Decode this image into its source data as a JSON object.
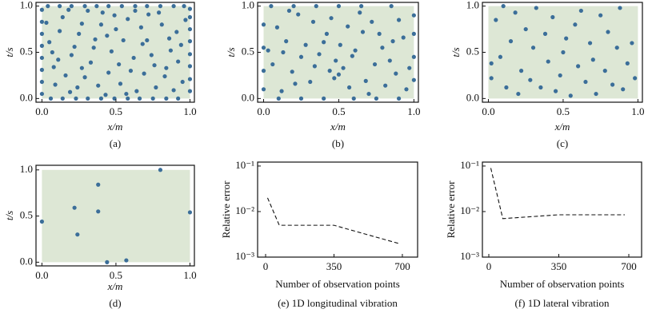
{
  "chart_data": [
    {
      "type": "scatter",
      "caption": "(a)",
      "xlabel": "x/m",
      "ylabel": "t/s",
      "color": "#3b6e99",
      "region": {
        "x": [
          0,
          1
        ],
        "y": [
          0,
          1
        ],
        "color": "#dde7d5"
      },
      "xlim": [
        -0.04,
        1.03
      ],
      "ylim": [
        -0.04,
        1.04
      ],
      "xticks": [
        {
          "value": 0,
          "label": "0.0"
        },
        0.5,
        {
          "value": 1,
          "label": "1.0"
        }
      ],
      "yticks": [
        {
          "value": 0,
          "label": "0.0"
        },
        0.5,
        {
          "value": 1,
          "label": "1.0"
        }
      ],
      "x": [
        0,
        0,
        0,
        0,
        0,
        0,
        0,
        0,
        1,
        1,
        1,
        1,
        1,
        1,
        1,
        1,
        0.06,
        0.14,
        0.23,
        0.31,
        0.4,
        0.49,
        0.58,
        0.66,
        0.75,
        0.84,
        0.92,
        0.04,
        0.12,
        0.2,
        0.29,
        0.37,
        0.45,
        0.54,
        0.63,
        0.71,
        0.8,
        0.89,
        0.96,
        0.11,
        0.27,
        0.53,
        0.68,
        0.84,
        0.19,
        0.36,
        0.72,
        0.45,
        0.91,
        0.05,
        0.62,
        0.29,
        0.77,
        0.14,
        0.5,
        0.87,
        0.33,
        0.58,
        0.95,
        0.22,
        0.41,
        0.69,
        0.08,
        0.81,
        0.47,
        0.25,
        0.64,
        0.38,
        0.92,
        0.16,
        0.55,
        0.74,
        0.03,
        0.31,
        0.86,
        0.43,
        0.6,
        0.12,
        0.79,
        0.35,
        0.97,
        0.2,
        0.52,
        0.67,
        0.09,
        0.44,
        0.89,
        0.27,
        0.71,
        0.57,
        0.18,
        0.83,
        0.4,
        0.63,
        0.07,
        0.49,
        0.94,
        0.24,
        0.76
      ],
      "y": [
        0.05,
        0.18,
        0.31,
        0.44,
        0.57,
        0.7,
        0.83,
        0.96,
        0.08,
        0.21,
        0.35,
        0.48,
        0.62,
        0.75,
        0.88,
        0.97,
        0,
        0,
        0,
        0,
        0,
        0,
        0,
        0,
        0,
        0,
        0,
        1,
        1,
        1,
        1,
        1,
        1,
        1,
        1,
        1,
        1,
        1,
        1,
        0.42,
        0.81,
        0.16,
        0.59,
        0.33,
        0.07,
        0.64,
        0.91,
        0.28,
        0.72,
        0.61,
        0.44,
        0.23,
        0.12,
        0.88,
        0.75,
        0.52,
        0.39,
        0.86,
        0.18,
        0.56,
        0.93,
        0.27,
        0.34,
        0.8,
        0.51,
        0.7,
        0.08,
        0.14,
        0.4,
        0.25,
        0.63,
        0.47,
        0.82,
        0.95,
        0.65,
        0.04,
        0.3,
        0.73,
        0.93,
        0.55,
        0.85,
        0.47,
        0.37,
        0.77,
        0.15,
        0.68,
        0.09,
        0.33,
        0.63,
        0.05,
        0.96,
        0.24,
        0.8,
        0.95,
        0.5,
        0.9,
        0.58,
        0.12,
        0.36
      ]
    },
    {
      "type": "scatter",
      "caption": "(b)",
      "xlabel": "x/m",
      "ylabel": "t/s",
      "color": "#3b6e99",
      "region": {
        "x": [
          0,
          1
        ],
        "y": [
          0,
          1
        ],
        "color": "#dde7d5"
      },
      "xlim": [
        -0.04,
        1.03
      ],
      "ylim": [
        -0.04,
        1.04
      ],
      "xticks": [
        {
          "value": 0,
          "label": "0.0"
        },
        0.5,
        {
          "value": 1,
          "label": "1.0"
        }
      ],
      "yticks": [
        {
          "value": 0,
          "label": "0.0"
        },
        0.5,
        {
          "value": 1,
          "label": "1.0"
        }
      ],
      "x": [
        0,
        0,
        0,
        0,
        1,
        1,
        1,
        1,
        0.1,
        0.25,
        0.4,
        0.6,
        0.75,
        0.9,
        0.05,
        0.2,
        0.35,
        0.5,
        0.65,
        0.85,
        0.15,
        0.31,
        0.48,
        0.72,
        0.88,
        0.06,
        0.23,
        0.42,
        0.57,
        0.79,
        0.93,
        0.12,
        0.37,
        0.5,
        0.66,
        0.84,
        0.19,
        0.45,
        0.61,
        0.97,
        0.28,
        0.53,
        0.7,
        0.09,
        0.34,
        0.81,
        0.47,
        0.64,
        0.25,
        0.9,
        0.03,
        0.4,
        0.56,
        0.74,
        0.17,
        0.44,
        0.68,
        0.86,
        0.33,
        0.59,
        0.21,
        0.77,
        0.51,
        0.95,
        0.13
      ],
      "y": [
        0.1,
        0.3,
        0.55,
        0.8,
        0.2,
        0.45,
        0.7,
        0.9,
        0,
        0,
        0,
        0,
        0,
        0,
        1,
        1,
        1,
        1,
        1,
        1,
        0.62,
        0.18,
        0.41,
        0.83,
        0.27,
        0.37,
        0.91,
        0.7,
        0.12,
        0.55,
        0.66,
        0.08,
        0.48,
        0.26,
        0.72,
        0.41,
        0.29,
        0.87,
        0.52,
        0.33,
        0.58,
        0.33,
        0.05,
        0.77,
        0.35,
        0.14,
        0.22,
        0.93,
        0.45,
        0.85,
        0.52,
        0.61,
        0.78,
        0.37,
        0.95,
        0.3,
        0.19,
        0.62,
        0.83,
        0.46,
        0.16,
        0.7,
        0.58,
        0.1,
        0.5
      ]
    },
    {
      "type": "scatter",
      "caption": "(c)",
      "xlabel": "x/m",
      "ylabel": "t/s",
      "color": "#3b6e99",
      "region": {
        "x": [
          0,
          1
        ],
        "y": [
          0,
          1
        ],
        "color": "#dde7d5"
      },
      "xlim": [
        -0.04,
        1.03
      ],
      "ylim": [
        -0.04,
        1.04
      ],
      "xticks": [
        {
          "value": 0,
          "label": "0.0"
        },
        0.5,
        {
          "value": 1,
          "label": "1.0"
        }
      ],
      "yticks": [
        {
          "value": 0,
          "label": "0.0"
        },
        0.5,
        {
          "value": 1,
          "label": "1.0"
        }
      ],
      "x": [
        0.02,
        0.02,
        0.05,
        0.08,
        0.1,
        0.12,
        0.15,
        0.18,
        0.2,
        0.22,
        0.25,
        0.28,
        0.3,
        0.32,
        0.35,
        0.38,
        0.4,
        0.43,
        0.45,
        0.48,
        0.5,
        0.52,
        0.55,
        0.58,
        0.6,
        0.62,
        0.65,
        0.68,
        0.7,
        0.72,
        0.75,
        0.78,
        0.8,
        0.83,
        0.86,
        0.88,
        0.9,
        0.93,
        0.96,
        0.98
      ],
      "y": [
        0.38,
        0.22,
        0.85,
        0.45,
        1,
        0.12,
        0.62,
        0.93,
        0.05,
        0.3,
        0.75,
        0.2,
        0.55,
        0.98,
        0.12,
        0.7,
        0.4,
        0.88,
        0.08,
        0.25,
        0.5,
        0.65,
        0.03,
        0.8,
        0.35,
        0.95,
        0.18,
        0.6,
        0.42,
        0.05,
        0.9,
        0.3,
        0.72,
        0.15,
        0.55,
        0.98,
        0.1,
        0.38,
        0.6,
        0.22
      ]
    },
    {
      "type": "scatter",
      "caption": "(d)",
      "xlabel": "x/m",
      "ylabel": "t/s",
      "color": "#3b6e99",
      "region": {
        "x": [
          0,
          1
        ],
        "y": [
          0,
          1
        ],
        "color": "#dde7d5"
      },
      "xlim": [
        -0.04,
        1.03
      ],
      "ylim": [
        -0.04,
        1.05
      ],
      "xticks": [
        {
          "value": 0,
          "label": "0.0"
        },
        0.5,
        {
          "value": 1,
          "label": "1.0"
        }
      ],
      "yticks": [
        {
          "value": 0,
          "label": "0.0"
        },
        0.5,
        {
          "value": 1,
          "label": "1.0"
        }
      ],
      "x": [
        0,
        0.22,
        0.24,
        0.38,
        0.38,
        0.44,
        0.57,
        0.8,
        1
      ],
      "y": [
        0.44,
        0.59,
        0.3,
        0.84,
        0.55,
        0,
        0.02,
        1,
        0.54
      ]
    },
    {
      "type": "line",
      "caption": "(e) 1D longitudinal vibration",
      "xlabel": "Number of observation points",
      "ylabel": "Relative error",
      "color": "#111111",
      "yscale": "log",
      "xlim": [
        -41,
        778
      ],
      "ylim": [
        0.001,
        0.122
      ],
      "xticks": [
        0,
        350,
        700
      ],
      "yticks": [
        {
          "value": 0.001,
          "label": "10⁻³"
        },
        {
          "value": 0.01,
          "label": "10⁻²"
        },
        {
          "value": 0.1,
          "label": "10⁻¹"
        }
      ],
      "x": [
        10,
        70,
        350,
        680
      ],
      "y": [
        0.02,
        0.005,
        0.005,
        0.002
      ]
    },
    {
      "type": "line",
      "caption": "(f) 1D lateral vibration",
      "xlabel": "Number of observation points",
      "ylabel": "Relative error",
      "color": "#111111",
      "yscale": "log",
      "xlim": [
        -32,
        764
      ],
      "ylim": [
        0.001,
        0.122
      ],
      "xticks": [
        0,
        350,
        700
      ],
      "yticks": [
        {
          "value": 0.001,
          "label": "10⁻³"
        },
        {
          "value": 0.01,
          "label": "10⁻²"
        },
        {
          "value": 0.1,
          "label": "10⁻¹"
        }
      ],
      "x": [
        10,
        70,
        350,
        680
      ],
      "y": [
        0.09,
        0.007,
        0.0085,
        0.0085
      ]
    }
  ]
}
